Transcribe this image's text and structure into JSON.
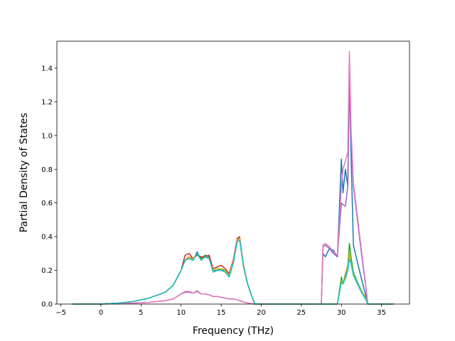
{
  "chart_data": {
    "type": "line",
    "title": "",
    "xlabel": "Frequency (THz)",
    "ylabel": "Partial Density of States",
    "xlim": [
      -5.5,
      38.5
    ],
    "ylim": [
      0.0,
      1.56
    ],
    "xticks": [
      -5,
      0,
      5,
      10,
      15,
      20,
      25,
      30,
      35
    ],
    "yticks": [
      0.0,
      0.2,
      0.4,
      0.6,
      0.8,
      1.0,
      1.2,
      1.4
    ],
    "xtick_labels": [
      "−5",
      "0",
      "5",
      "10",
      "15",
      "20",
      "25",
      "30",
      "35"
    ],
    "ytick_labels": [
      "0.0",
      "0.2",
      "0.4",
      "0.6",
      "0.8",
      "1.0",
      "1.2",
      "1.4"
    ],
    "grid": false,
    "legend": "none",
    "series": [
      {
        "color": "#1f77b4",
        "x": [
          -3.5,
          0,
          2,
          4,
          6,
          8,
          9,
          10,
          10.5,
          11,
          11.5,
          12,
          12.5,
          13,
          13.5,
          14,
          14.5,
          15,
          15.5,
          16,
          16.5,
          17,
          17.3,
          17.8,
          18.3,
          18.8,
          19.2,
          20,
          27.5,
          27.7,
          28,
          28.5,
          29,
          29.5,
          30,
          30.2,
          30.5,
          30.8,
          31,
          31.2,
          31.5,
          32,
          32.5,
          33,
          33.3,
          36.5
        ],
        "y": [
          0.0,
          0.0,
          0.005,
          0.015,
          0.035,
          0.07,
          0.11,
          0.2,
          0.26,
          0.27,
          0.26,
          0.31,
          0.26,
          0.29,
          0.28,
          0.19,
          0.2,
          0.2,
          0.2,
          0.17,
          0.24,
          0.38,
          0.39,
          0.22,
          0.12,
          0.05,
          0.0,
          0.0,
          0.0,
          0.3,
          0.28,
          0.33,
          0.32,
          0.28,
          0.86,
          0.66,
          0.8,
          0.7,
          1.35,
          0.9,
          0.35,
          0.25,
          0.15,
          0.06,
          0.0,
          0.0
        ]
      },
      {
        "color": "#ff7f0e",
        "x": [
          -3.5,
          0,
          2,
          4,
          6,
          8,
          9,
          10,
          10.5,
          11,
          11.5,
          12,
          12.5,
          13,
          13.5,
          14,
          14.5,
          15,
          15.5,
          16,
          16.5,
          17,
          17.3,
          17.8,
          18.3,
          18.8,
          19.2,
          20,
          27.5,
          27.7,
          28,
          28.5,
          29,
          29.5,
          30,
          30.2,
          30.5,
          30.8,
          31,
          31.2,
          31.5,
          32,
          32.5,
          33,
          33.3,
          36.5
        ],
        "y": [
          0.0,
          0.0,
          0.005,
          0.015,
          0.035,
          0.07,
          0.11,
          0.2,
          0.26,
          0.28,
          0.27,
          0.3,
          0.27,
          0.28,
          0.27,
          0.2,
          0.21,
          0.21,
          0.2,
          0.18,
          0.25,
          0.38,
          0.39,
          0.23,
          0.12,
          0.05,
          0.0,
          0.0,
          0.0,
          0.0,
          0.0,
          0.0,
          0.0,
          0.0,
          0.15,
          0.12,
          0.18,
          0.22,
          0.3,
          0.26,
          0.18,
          0.12,
          0.08,
          0.04,
          0.0,
          0.0
        ]
      },
      {
        "color": "#2ca02c",
        "x": [
          -3.5,
          0,
          2,
          4,
          6,
          8,
          9,
          10,
          10.5,
          11,
          11.5,
          12,
          12.5,
          13,
          13.5,
          14,
          14.5,
          15,
          15.5,
          16,
          16.5,
          17,
          17.3,
          17.8,
          18.3,
          18.8,
          19.2,
          20,
          27.5,
          27.7,
          28,
          28.5,
          29,
          29.5,
          30,
          30.2,
          30.5,
          30.8,
          31,
          31.2,
          31.5,
          32,
          32.5,
          33,
          33.3,
          36.5
        ],
        "y": [
          0.0,
          0.0,
          0.005,
          0.015,
          0.035,
          0.07,
          0.11,
          0.2,
          0.26,
          0.27,
          0.26,
          0.3,
          0.27,
          0.29,
          0.28,
          0.2,
          0.2,
          0.21,
          0.2,
          0.17,
          0.25,
          0.38,
          0.39,
          0.22,
          0.12,
          0.05,
          0.0,
          0.0,
          0.0,
          0.0,
          0.0,
          0.0,
          0.0,
          0.0,
          0.16,
          0.12,
          0.17,
          0.23,
          0.36,
          0.28,
          0.19,
          0.13,
          0.08,
          0.04,
          0.0,
          0.0
        ]
      },
      {
        "color": "#d62728",
        "x": [
          -3.5,
          0,
          2,
          4,
          6,
          8,
          9,
          10,
          10.5,
          11,
          11.5,
          12,
          12.5,
          13,
          13.5,
          14,
          14.5,
          15,
          15.5,
          16,
          16.5,
          17,
          17.3,
          17.8,
          18.3,
          18.8,
          19.2,
          20
        ],
        "y": [
          0.0,
          0.0,
          0.005,
          0.015,
          0.035,
          0.07,
          0.11,
          0.2,
          0.29,
          0.3,
          0.27,
          0.29,
          0.28,
          0.28,
          0.29,
          0.21,
          0.22,
          0.23,
          0.21,
          0.18,
          0.26,
          0.39,
          0.4,
          0.22,
          0.12,
          0.05,
          0.0,
          0.0
        ]
      },
      {
        "color": "#9467bd",
        "x": [
          -3.5,
          0,
          2,
          4,
          6,
          8,
          9,
          10,
          10.5,
          11,
          11.5,
          12,
          12.5,
          13,
          13.5,
          14,
          14.5,
          15,
          15.5,
          16,
          16.5,
          17,
          17.3,
          17.8,
          18.3,
          18.8,
          19.2,
          20,
          27.5,
          27.7,
          28,
          28.5,
          29,
          29.5,
          30,
          30.2,
          30.5,
          30.8,
          31,
          31.2,
          31.5,
          32,
          32.5,
          33,
          33.3,
          36.5
        ],
        "y": [
          0.0,
          0.0,
          0.002,
          0.005,
          0.01,
          0.02,
          0.03,
          0.06,
          0.07,
          0.07,
          0.065,
          0.075,
          0.06,
          0.06,
          0.055,
          0.045,
          0.045,
          0.04,
          0.035,
          0.03,
          0.03,
          0.025,
          0.02,
          0.012,
          0.006,
          0.002,
          0.0,
          0.0,
          0.0,
          0.34,
          0.35,
          0.33,
          0.3,
          0.28,
          0.6,
          0.59,
          0.58,
          0.7,
          1.33,
          1.0,
          0.7,
          0.5,
          0.3,
          0.12,
          0.0,
          0.0
        ]
      },
      {
        "color": "#e377c2",
        "x": [
          -3.5,
          0,
          2,
          4,
          6,
          8,
          9,
          10,
          10.5,
          11,
          11.5,
          12,
          12.5,
          13,
          13.5,
          14,
          14.5,
          15,
          15.5,
          16,
          16.5,
          17,
          17.3,
          17.8,
          18.3,
          18.8,
          19.2,
          20,
          27.5,
          27.7,
          28,
          28.5,
          29,
          29.5,
          30,
          30.2,
          30.5,
          30.8,
          31,
          31.2,
          31.5,
          32,
          32.5,
          33,
          33.3,
          36.5
        ],
        "y": [
          0.0,
          0.0,
          0.002,
          0.005,
          0.01,
          0.02,
          0.03,
          0.06,
          0.075,
          0.075,
          0.065,
          0.08,
          0.06,
          0.06,
          0.055,
          0.045,
          0.045,
          0.04,
          0.035,
          0.03,
          0.03,
          0.025,
          0.02,
          0.012,
          0.006,
          0.002,
          0.0,
          0.0,
          0.0,
          0.35,
          0.36,
          0.34,
          0.31,
          0.29,
          0.7,
          0.8,
          0.85,
          0.9,
          1.5,
          1.05,
          0.72,
          0.52,
          0.32,
          0.13,
          0.0,
          0.0
        ]
      },
      {
        "color": "#bcbd22",
        "x": [
          -3.5,
          0,
          2,
          4,
          6,
          8,
          9,
          10,
          10.5,
          11,
          11.5,
          12,
          12.5,
          13,
          13.5,
          14,
          14.5,
          15,
          15.5,
          16,
          16.5,
          17,
          17.3,
          17.8,
          18.3,
          18.8,
          19.2,
          20,
          27.5,
          27.7,
          28,
          28.5,
          29,
          29.5,
          30,
          30.2,
          30.5,
          30.8,
          31,
          31.2,
          31.5,
          32,
          32.5,
          33,
          33.3,
          36.5
        ],
        "y": [
          0.0,
          0.0,
          0.005,
          0.015,
          0.035,
          0.07,
          0.11,
          0.2,
          0.26,
          0.27,
          0.27,
          0.3,
          0.26,
          0.28,
          0.27,
          0.2,
          0.21,
          0.21,
          0.2,
          0.17,
          0.25,
          0.38,
          0.39,
          0.22,
          0.12,
          0.05,
          0.0,
          0.0,
          0.0,
          0.0,
          0.0,
          0.0,
          0.0,
          0.0,
          0.14,
          0.12,
          0.16,
          0.22,
          0.31,
          0.25,
          0.18,
          0.12,
          0.08,
          0.04,
          0.0,
          0.0
        ]
      },
      {
        "color": "#17becf",
        "x": [
          -3.5,
          0,
          2,
          4,
          6,
          8,
          9,
          10,
          10.5,
          11,
          11.5,
          12,
          12.5,
          13,
          13.5,
          14,
          14.5,
          15,
          15.5,
          16,
          16.5,
          17,
          17.3,
          17.8,
          18.3,
          18.8,
          19.2,
          20,
          27.5,
          27.7,
          28,
          28.5,
          29,
          29.5,
          30,
          30.2,
          30.5,
          30.8,
          31,
          31.2,
          31.5,
          32,
          32.5,
          33,
          33.3,
          36.5
        ],
        "y": [
          0.0,
          0.0,
          0.005,
          0.015,
          0.035,
          0.07,
          0.11,
          0.2,
          0.26,
          0.27,
          0.26,
          0.3,
          0.26,
          0.28,
          0.27,
          0.19,
          0.2,
          0.2,
          0.19,
          0.16,
          0.24,
          0.37,
          0.38,
          0.22,
          0.12,
          0.05,
          0.0,
          0.0,
          0.0,
          0.0,
          0.0,
          0.0,
          0.0,
          0.0,
          0.13,
          0.12,
          0.15,
          0.2,
          0.27,
          0.24,
          0.17,
          0.12,
          0.07,
          0.03,
          0.0,
          0.0
        ]
      }
    ]
  }
}
